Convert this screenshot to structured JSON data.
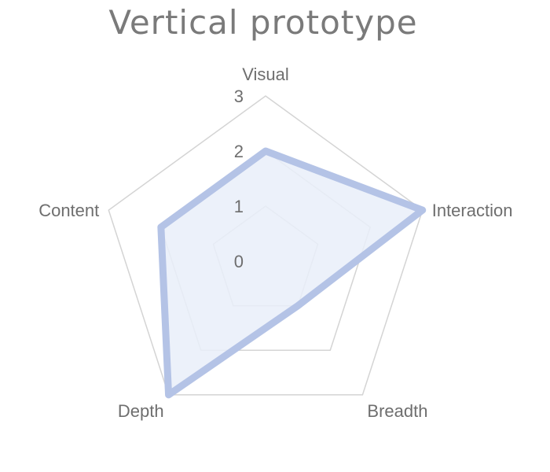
{
  "chart_data": {
    "type": "radar",
    "title": "Vertical prototype",
    "categories": [
      "Visual",
      "Interaction",
      "Breadth",
      "Depth",
      "Content"
    ],
    "rlim": [
      0,
      3
    ],
    "ticks": [
      "0",
      "1",
      "2",
      "3"
    ],
    "grid": true,
    "series": [
      {
        "values": [
          2,
          3,
          1,
          3,
          2
        ]
      }
    ],
    "colors": {
      "series_line": "#b4c3e6",
      "series_fill": "#e9eef9",
      "grid": "#d4d4d4",
      "text": "#6e6e6e"
    }
  }
}
